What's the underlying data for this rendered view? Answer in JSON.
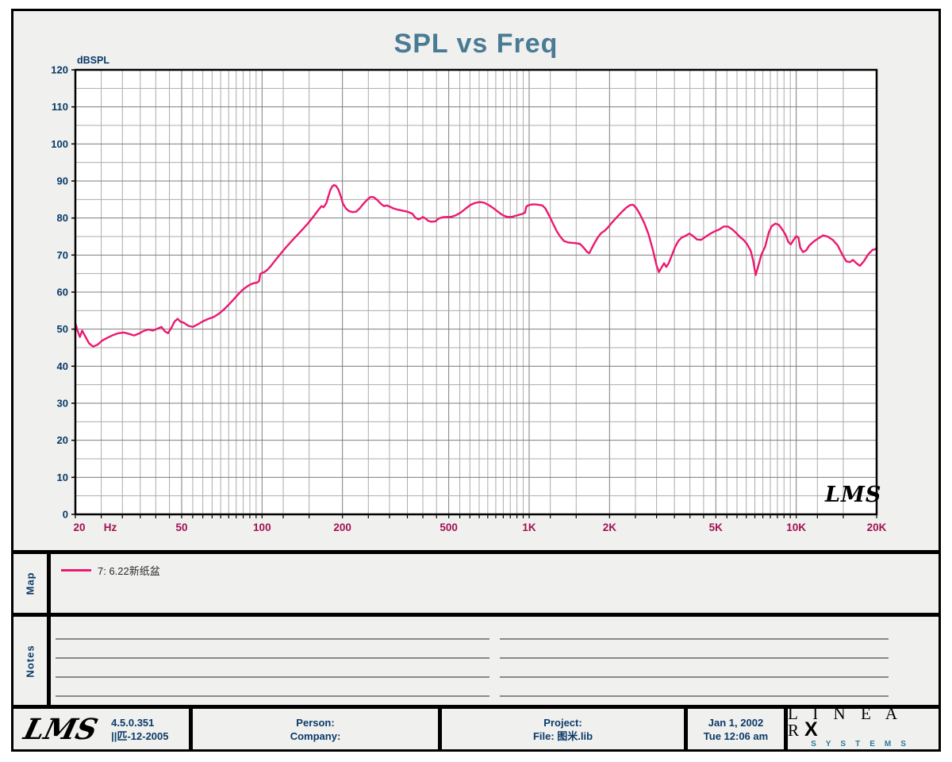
{
  "title": "SPL vs Freq",
  "watermark": "LMS",
  "colors": {
    "curve": "#eb1970",
    "title": "#4a7b94",
    "axis_x_labels": "#a01254",
    "axis_y_labels": "#0a3a68",
    "grid_major": "#7d7d7d",
    "grid_minor": "#ababab",
    "panel_bg": "#f0f0ee",
    "brand_systems": "#2d7a9a"
  },
  "chart_data": {
    "type": "line",
    "title": "SPL vs Freq",
    "ylabel": "dBSPL",
    "x_unit": "Hz",
    "x_scale": "log",
    "xlim": [
      20,
      20000
    ],
    "ylim": [
      0,
      120
    ],
    "y_major_step": 10,
    "y_minor_step": 5,
    "grid": true,
    "legend_position": "map-panel",
    "x_major_ticks": [
      {
        "f": 20,
        "label": "20"
      },
      {
        "f": 50,
        "label": "50"
      },
      {
        "f": 100,
        "label": "100"
      },
      {
        "f": 200,
        "label": "200"
      },
      {
        "f": 500,
        "label": "500"
      },
      {
        "f": 1000,
        "label": "1K"
      },
      {
        "f": 2000,
        "label": "2K"
      },
      {
        "f": 5000,
        "label": "5K"
      },
      {
        "f": 10000,
        "label": "10K"
      },
      {
        "f": 20000,
        "label": "20K"
      }
    ],
    "grid_mantissas": [
      1,
      1.2,
      1.5,
      2,
      2.5,
      3,
      3.5,
      4,
      4.5,
      5,
      5.5,
      6,
      6.5,
      7,
      7.5,
      8,
      8.5,
      9,
      9.5
    ],
    "series": [
      {
        "name": "7: 6.22新纸盆",
        "color": "#eb1970",
        "points": [
          [
            20,
            51.6
          ],
          [
            20.4,
            49.5
          ],
          [
            20.8,
            47.9
          ],
          [
            21.2,
            49.6
          ],
          [
            21.8,
            48.0
          ],
          [
            22.5,
            46.2
          ],
          [
            23.3,
            45.3
          ],
          [
            24.2,
            45.8
          ],
          [
            25.2,
            46.9
          ],
          [
            26.4,
            47.7
          ],
          [
            27.7,
            48.4
          ],
          [
            29,
            48.9
          ],
          [
            30.4,
            49.1
          ],
          [
            31.8,
            48.7
          ],
          [
            33.2,
            48.3
          ],
          [
            34.6,
            48.8
          ],
          [
            36,
            49.5
          ],
          [
            37.5,
            49.9
          ],
          [
            39,
            49.6
          ],
          [
            40.5,
            50.1
          ],
          [
            42,
            50.6
          ],
          [
            43.3,
            49.4
          ],
          [
            44.5,
            48.9
          ],
          [
            45.8,
            50.4
          ],
          [
            47,
            52.0
          ],
          [
            48.3,
            52.8
          ],
          [
            49.5,
            52.0
          ],
          [
            51,
            51.7
          ],
          [
            53,
            50.9
          ],
          [
            55,
            50.6
          ],
          [
            57.5,
            51.3
          ],
          [
            60,
            52.1
          ],
          [
            63,
            52.8
          ],
          [
            66,
            53.3
          ],
          [
            69,
            54.2
          ],
          [
            72,
            55.3
          ],
          [
            75,
            56.6
          ],
          [
            78,
            57.9
          ],
          [
            81,
            59.2
          ],
          [
            84,
            60.4
          ],
          [
            87,
            61.3
          ],
          [
            90,
            62.0
          ],
          [
            93,
            62.4
          ],
          [
            96,
            62.6
          ],
          [
            97.5,
            63.0
          ],
          [
            98.5,
            64.9
          ],
          [
            100,
            65.2
          ],
          [
            102,
            65.4
          ],
          [
            105,
            66.1
          ],
          [
            108,
            67.1
          ],
          [
            111,
            68.2
          ],
          [
            115,
            69.6
          ],
          [
            119,
            70.9
          ],
          [
            123,
            72.1
          ],
          [
            128,
            73.5
          ],
          [
            133,
            74.8
          ],
          [
            138,
            76.0
          ],
          [
            143,
            77.2
          ],
          [
            148,
            78.4
          ],
          [
            153,
            79.7
          ],
          [
            158,
            81.0
          ],
          [
            163,
            82.3
          ],
          [
            167,
            83.2
          ],
          [
            170,
            82.9
          ],
          [
            174,
            84.0
          ],
          [
            177,
            85.8
          ],
          [
            180,
            87.5
          ],
          [
            183,
            88.5
          ],
          [
            186,
            88.9
          ],
          [
            189,
            88.7
          ],
          [
            193,
            87.7
          ],
          [
            197,
            85.9
          ],
          [
            201,
            83.8
          ],
          [
            206,
            82.6
          ],
          [
            211,
            81.9
          ],
          [
            218,
            81.6
          ],
          [
            225,
            81.7
          ],
          [
            232,
            82.6
          ],
          [
            240,
            83.9
          ],
          [
            248,
            85.0
          ],
          [
            255,
            85.7
          ],
          [
            262,
            85.6
          ],
          [
            270,
            84.9
          ],
          [
            278,
            83.9
          ],
          [
            286,
            83.2
          ],
          [
            293,
            83.4
          ],
          [
            300,
            83.1
          ],
          [
            310,
            82.6
          ],
          [
            320,
            82.3
          ],
          [
            335,
            82.0
          ],
          [
            350,
            81.7
          ],
          [
            365,
            81.2
          ],
          [
            375,
            80.1
          ],
          [
            385,
            79.6
          ],
          [
            395,
            80.0
          ],
          [
            400,
            80.3
          ],
          [
            410,
            79.8
          ],
          [
            420,
            79.2
          ],
          [
            430,
            79.0
          ],
          [
            445,
            79.1
          ],
          [
            460,
            79.9
          ],
          [
            475,
            80.2
          ],
          [
            490,
            80.3
          ],
          [
            510,
            80.3
          ],
          [
            530,
            80.7
          ],
          [
            555,
            81.5
          ],
          [
            580,
            82.6
          ],
          [
            605,
            83.6
          ],
          [
            630,
            84.1
          ],
          [
            655,
            84.3
          ],
          [
            680,
            84.1
          ],
          [
            705,
            83.5
          ],
          [
            730,
            82.8
          ],
          [
            755,
            82.0
          ],
          [
            780,
            81.2
          ],
          [
            805,
            80.6
          ],
          [
            830,
            80.3
          ],
          [
            860,
            80.3
          ],
          [
            890,
            80.6
          ],
          [
            920,
            80.9
          ],
          [
            950,
            81.2
          ],
          [
            965,
            81.5
          ],
          [
            975,
            83.0
          ],
          [
            990,
            83.4
          ],
          [
            1010,
            83.6
          ],
          [
            1040,
            83.7
          ],
          [
            1080,
            83.6
          ],
          [
            1120,
            83.4
          ],
          [
            1150,
            82.6
          ],
          [
            1190,
            80.6
          ],
          [
            1230,
            78.4
          ],
          [
            1270,
            76.4
          ],
          [
            1310,
            74.9
          ],
          [
            1350,
            73.8
          ],
          [
            1400,
            73.4
          ],
          [
            1450,
            73.3
          ],
          [
            1500,
            73.2
          ],
          [
            1550,
            73.0
          ],
          [
            1600,
            72.0
          ],
          [
            1650,
            70.8
          ],
          [
            1680,
            70.5
          ],
          [
            1720,
            72.0
          ],
          [
            1760,
            73.3
          ],
          [
            1810,
            74.8
          ],
          [
            1860,
            75.9
          ],
          [
            1920,
            76.6
          ],
          [
            1980,
            77.6
          ],
          [
            2050,
            78.9
          ],
          [
            2130,
            80.2
          ],
          [
            2220,
            81.6
          ],
          [
            2310,
            82.8
          ],
          [
            2390,
            83.5
          ],
          [
            2450,
            83.6
          ],
          [
            2520,
            82.7
          ],
          [
            2600,
            81.0
          ],
          [
            2700,
            78.6
          ],
          [
            2800,
            75.6
          ],
          [
            2900,
            71.6
          ],
          [
            3000,
            67.2
          ],
          [
            3060,
            65.4
          ],
          [
            3140,
            66.8
          ],
          [
            3200,
            67.8
          ],
          [
            3260,
            66.8
          ],
          [
            3330,
            67.8
          ],
          [
            3420,
            69.9
          ],
          [
            3520,
            72.2
          ],
          [
            3620,
            73.8
          ],
          [
            3720,
            74.7
          ],
          [
            3850,
            75.2
          ],
          [
            3980,
            75.8
          ],
          [
            4100,
            75.2
          ],
          [
            4250,
            74.2
          ],
          [
            4400,
            74.1
          ],
          [
            4550,
            74.8
          ],
          [
            4750,
            75.7
          ],
          [
            4950,
            76.4
          ],
          [
            5150,
            76.9
          ],
          [
            5350,
            77.7
          ],
          [
            5550,
            77.7
          ],
          [
            5750,
            77.0
          ],
          [
            5950,
            76.0
          ],
          [
            6150,
            74.9
          ],
          [
            6350,
            74.1
          ],
          [
            6550,
            72.9
          ],
          [
            6750,
            71.2
          ],
          [
            6900,
            68.5
          ],
          [
            7050,
            64.6
          ],
          [
            7200,
            66.9
          ],
          [
            7400,
            70.0
          ],
          [
            7650,
            72.3
          ],
          [
            7900,
            76.2
          ],
          [
            8100,
            77.8
          ],
          [
            8350,
            78.5
          ],
          [
            8600,
            78.2
          ],
          [
            8850,
            77.0
          ],
          [
            9100,
            75.6
          ],
          [
            9350,
            73.5
          ],
          [
            9550,
            72.9
          ],
          [
            9750,
            74.0
          ],
          [
            10000,
            75.1
          ],
          [
            10200,
            74.7
          ],
          [
            10350,
            72.0
          ],
          [
            10600,
            70.8
          ],
          [
            10900,
            71.3
          ],
          [
            11200,
            72.6
          ],
          [
            11600,
            73.6
          ],
          [
            12100,
            74.5
          ],
          [
            12600,
            75.3
          ],
          [
            13100,
            75.0
          ],
          [
            13700,
            74.1
          ],
          [
            14300,
            72.6
          ],
          [
            14900,
            70.0
          ],
          [
            15400,
            68.3
          ],
          [
            15900,
            68.1
          ],
          [
            16300,
            68.7
          ],
          [
            16800,
            67.8
          ],
          [
            17300,
            67.1
          ],
          [
            17900,
            68.3
          ],
          [
            18600,
            70.2
          ],
          [
            19300,
            71.4
          ],
          [
            19800,
            71.6
          ],
          [
            20000,
            72.0
          ]
        ]
      }
    ]
  },
  "map_panel": {
    "label": "Map",
    "legend": [
      {
        "label": "7: 6.22新纸盆",
        "color": "#eb1970"
      }
    ]
  },
  "notes_panel": {
    "label": "Notes"
  },
  "footer": {
    "logo_text": "LMS",
    "version": "4.5.0.351",
    "build_date": "||匹-12-2005",
    "person_label": "Person:",
    "company_label": "Company:",
    "project_label": "Project:",
    "file_label": "File: 图米.lib",
    "date": "Jan 1, 2002",
    "time": "Tue 12:06 am",
    "brand": {
      "linear": "L I N E A R",
      "x": "X",
      "systems": "SYSTEMS"
    }
  }
}
